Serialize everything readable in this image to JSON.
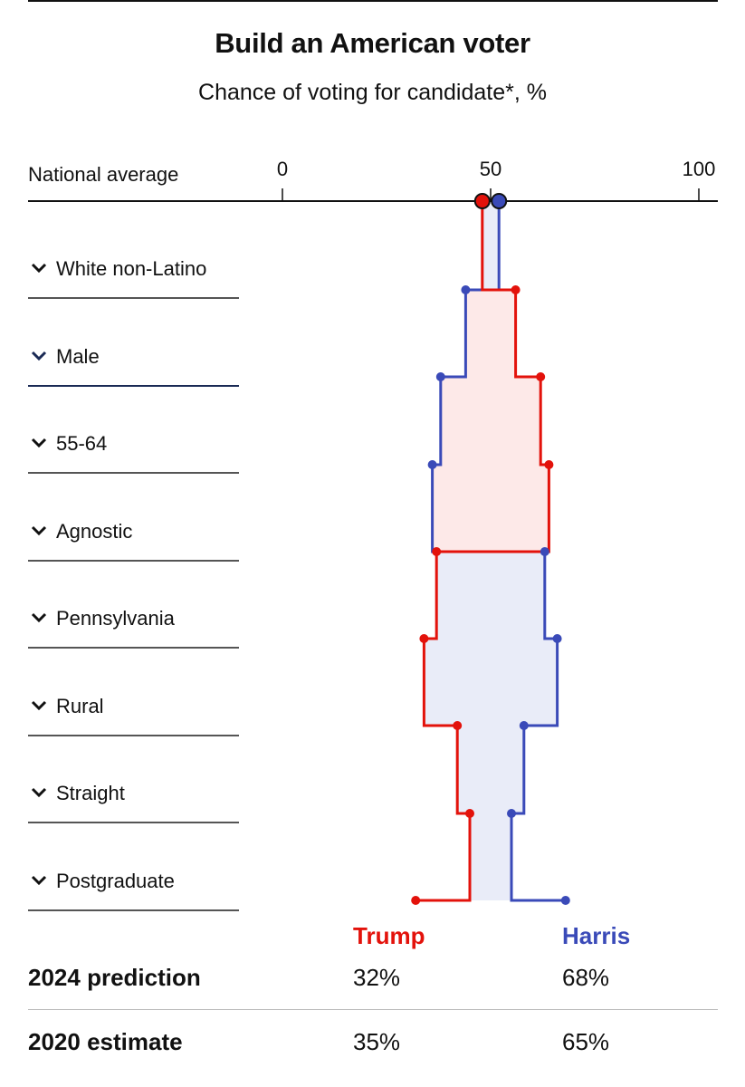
{
  "header": {
    "title": "Build an American voter",
    "subtitle": "Chance of voting for candidate*, %"
  },
  "axis": {
    "national_label": "National average",
    "ticks": [
      "0",
      "50",
      "100"
    ]
  },
  "dropdowns": [
    {
      "label": "White non-Latino",
      "active": false
    },
    {
      "label": "Male",
      "active": true
    },
    {
      "label": "55-64",
      "active": false
    },
    {
      "label": "Agnostic",
      "active": false
    },
    {
      "label": "Pennsylvania",
      "active": false
    },
    {
      "label": "Rural",
      "active": false
    },
    {
      "label": "Straight",
      "active": false
    },
    {
      "label": "Postgraduate",
      "active": false
    }
  ],
  "legend": {
    "trump": "Trump",
    "harris": "Harris"
  },
  "results": {
    "prediction_label": "2024 prediction",
    "prediction_trump": "32%",
    "prediction_harris": "68%",
    "estimate_label": "2020 estimate",
    "estimate_trump": "35%",
    "estimate_harris": "65%"
  },
  "colors": {
    "trump": "#e3120b",
    "harris": "#3a4ab8",
    "trump_fill": "#fde9e8",
    "harris_fill": "#e9ecf8"
  },
  "chart_data": {
    "type": "line",
    "xlim": [
      0,
      100
    ],
    "categories": [
      "National average",
      "White non-Latino",
      "Male",
      "55-64",
      "Agnostic",
      "Pennsylvania",
      "Rural",
      "Straight",
      "Postgraduate"
    ],
    "series": [
      {
        "name": "Trump",
        "values": [
          48,
          56,
          62,
          64,
          37,
          34,
          42,
          45,
          32
        ]
      },
      {
        "name": "Harris",
        "values": [
          52,
          44,
          38,
          36,
          63,
          66,
          58,
          55,
          68
        ]
      }
    ]
  }
}
